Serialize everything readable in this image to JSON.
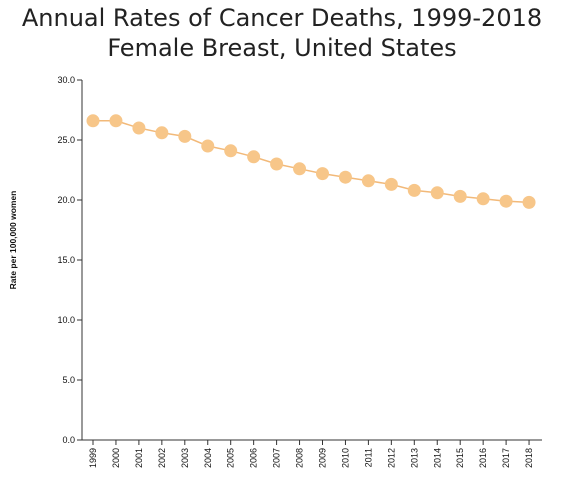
{
  "chart_data": {
    "type": "line",
    "title": "Annual Rates of Cancer Deaths, 1999-2018",
    "subtitle": "Female Breast, United States",
    "xlabel": "",
    "ylabel": "Rate per 100,000 women",
    "x": [
      "1999",
      "2000",
      "2001",
      "2002",
      "2003",
      "2004",
      "2005",
      "2006",
      "2007",
      "2008",
      "2009",
      "2010",
      "2011",
      "2012",
      "2013",
      "2014",
      "2015",
      "2016",
      "2017",
      "2018"
    ],
    "series": [
      {
        "values": [
          26.6,
          26.6,
          26.0,
          25.6,
          25.3,
          24.5,
          24.1,
          23.6,
          23.0,
          22.6,
          22.2,
          21.9,
          21.6,
          21.3,
          20.8,
          20.6,
          20.3,
          20.1,
          19.9,
          19.8
        ]
      }
    ],
    "ylim": [
      0,
      30
    ],
    "yticks": [
      "0.0",
      "5.0",
      "10.0",
      "15.0",
      "20.0",
      "25.0",
      "30.0"
    ],
    "grid": false,
    "marker_color": "#f7c689",
    "line_color": "#f2b979"
  }
}
